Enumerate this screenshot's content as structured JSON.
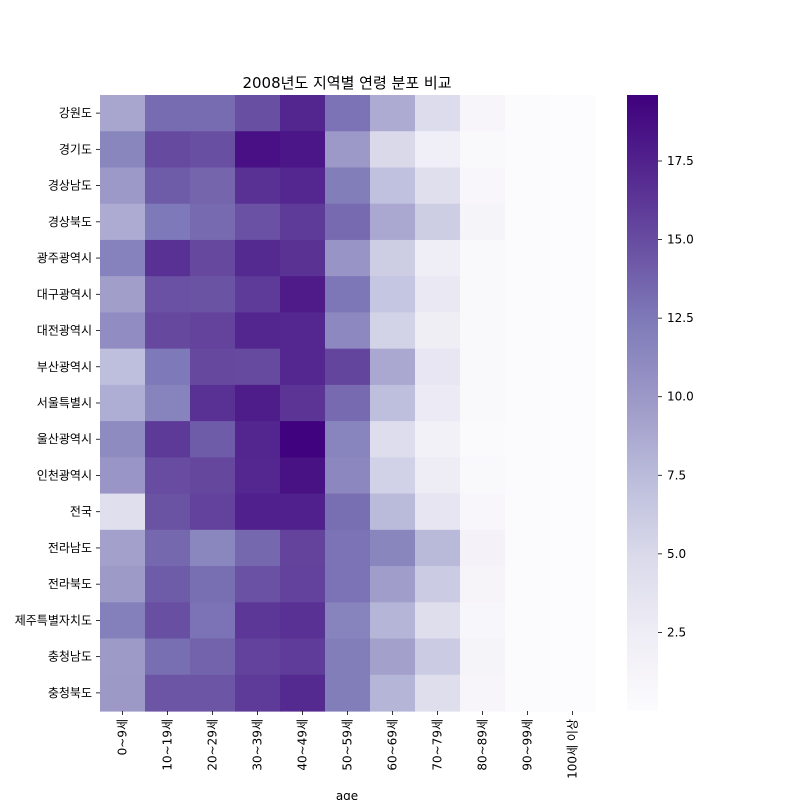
{
  "chart_data": {
    "type": "heatmap",
    "title": "2008년도 지역별 연령 분포 비교",
    "xlabel": "age",
    "ylabel": "",
    "x": [
      "0~9세",
      "10~19세",
      "20~29세",
      "30~39세",
      "40~49세",
      "50~59세",
      "60~69세",
      "70~79세",
      "80~89세",
      "90~99세",
      "100세 이상"
    ],
    "y": [
      "강원도",
      "경기도",
      "경상남도",
      "경상북도",
      "광주광역시",
      "대구광역시",
      "대전광역시",
      "부산광역시",
      "서울특별시",
      "울산광역시",
      "인천광역시",
      "전국",
      "전라남도",
      "전라북도",
      "제주특별자치도",
      "충청남도",
      "충청북도"
    ],
    "values": [
      [
        9.0,
        13.2,
        13.2,
        14.8,
        17.3,
        12.8,
        8.6,
        4.6,
        1.0,
        0.1,
        0.0
      ],
      [
        11.5,
        15.1,
        14.8,
        18.6,
        18.2,
        10.0,
        5.0,
        2.2,
        0.6,
        0.1,
        0.0
      ],
      [
        10.0,
        14.1,
        13.6,
        16.6,
        17.2,
        12.2,
        7.0,
        4.2,
        0.8,
        0.1,
        0.0
      ],
      [
        8.6,
        12.5,
        13.3,
        14.7,
        16.0,
        13.3,
        8.8,
        6.0,
        1.3,
        0.2,
        0.0
      ],
      [
        11.8,
        16.6,
        15.2,
        17.0,
        16.5,
        10.3,
        6.0,
        2.5,
        0.6,
        0.1,
        0.0
      ],
      [
        9.5,
        14.7,
        14.6,
        16.0,
        17.9,
        12.6,
        6.6,
        3.0,
        0.6,
        0.1,
        0.0
      ],
      [
        10.9,
        15.2,
        15.5,
        17.3,
        17.2,
        11.2,
        5.5,
        2.3,
        0.5,
        0.1,
        0.0
      ],
      [
        7.2,
        12.5,
        15.2,
        15.1,
        17.2,
        15.4,
        8.8,
        3.3,
        0.6,
        0.1,
        0.0
      ],
      [
        8.5,
        11.7,
        16.6,
        17.8,
        16.4,
        13.3,
        7.2,
        2.8,
        0.6,
        0.1,
        0.0
      ],
      [
        11.1,
        16.1,
        14.1,
        17.3,
        19.5,
        11.6,
        4.5,
        1.8,
        0.4,
        0.1,
        0.0
      ],
      [
        10.2,
        15.0,
        15.3,
        17.2,
        18.5,
        11.3,
        5.6,
        2.6,
        0.6,
        0.1,
        0.0
      ],
      [
        4.3,
        14.6,
        15.6,
        17.6,
        17.6,
        13.1,
        7.5,
        3.5,
        0.8,
        0.1,
        0.0
      ],
      [
        9.4,
        13.4,
        11.4,
        13.4,
        15.5,
        12.8,
        11.5,
        7.6,
        1.5,
        0.2,
        0.0
      ],
      [
        9.8,
        14.1,
        13.1,
        14.7,
        15.6,
        12.8,
        9.6,
        6.1,
        1.2,
        0.2,
        0.0
      ],
      [
        12.0,
        14.8,
        12.8,
        16.2,
        16.6,
        11.7,
        7.9,
        4.4,
        0.9,
        0.2,
        0.0
      ],
      [
        9.8,
        13.1,
        13.7,
        15.6,
        15.9,
        12.2,
        9.4,
        6.1,
        1.3,
        0.2,
        0.0
      ],
      [
        9.9,
        14.5,
        14.5,
        16.0,
        17.0,
        12.2,
        7.9,
        4.4,
        1.0,
        0.1,
        0.0
      ]
    ],
    "colormap": "Purples",
    "colorbar": {
      "min": 0.0,
      "max": 19.6,
      "ticks": [
        "2.5",
        "5.0",
        "7.5",
        "10.0",
        "12.5",
        "15.0",
        "17.5"
      ]
    },
    "grid": false,
    "legend": "right"
  }
}
